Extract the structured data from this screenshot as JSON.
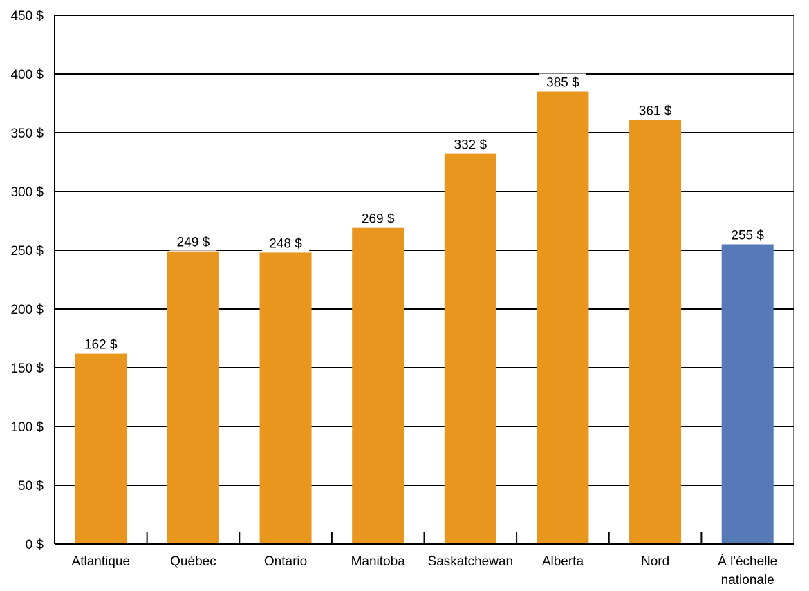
{
  "chart_data": {
    "type": "bar",
    "title": "",
    "xlabel": "",
    "ylabel": "",
    "categories": [
      "Atlantique",
      "Québec",
      "Ontario",
      "Manitoba",
      "Saskatchewan",
      "Alberta",
      "Nord",
      "À l'échelle nationale"
    ],
    "category_lines": [
      [
        "Atlantique"
      ],
      [
        "Québec"
      ],
      [
        "Ontario"
      ],
      [
        "Manitoba"
      ],
      [
        "Saskatchewan"
      ],
      [
        "Alberta"
      ],
      [
        "Nord"
      ],
      [
        "À l'échelle",
        "nationale"
      ]
    ],
    "values": [
      162,
      249,
      248,
      269,
      332,
      385,
      361,
      255
    ],
    "data_labels": [
      "162 $",
      "249 $",
      "248 $",
      "269 $",
      "332 $",
      "385 $",
      "361 $",
      "255 $"
    ],
    "bar_colors": [
      "#E8961E",
      "#E8961E",
      "#E8961E",
      "#E8961E",
      "#E8961E",
      "#E8961E",
      "#E8961E",
      "#5679B8"
    ],
    "ylim": [
      0,
      450
    ],
    "yticks": [
      0,
      50,
      100,
      150,
      200,
      250,
      300,
      350,
      400,
      450
    ],
    "ytick_labels": [
      "0 $",
      "50 $",
      "100 $",
      "150 $",
      "200 $",
      "250 $",
      "300 $",
      "350 $",
      "400 $",
      "450 $"
    ],
    "grid": true,
    "legend": "none"
  }
}
